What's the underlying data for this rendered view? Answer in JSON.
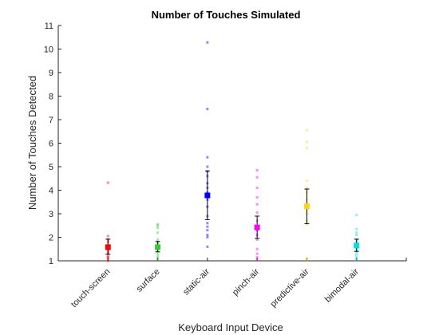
{
  "chart_data": {
    "type": "scatter",
    "title": "Number of Touches Simulated",
    "xlabel": "Keyboard Input Device",
    "ylabel": "Number of Touches Detected",
    "ylim": [
      1,
      11
    ],
    "yticks": [
      1,
      2,
      3,
      4,
      5,
      6,
      7,
      8,
      9,
      10,
      11
    ],
    "grid": false,
    "categories": [
      "touch-screen",
      "surface",
      "static-air",
      "pinch-air",
      "predictive-air",
      "bimodal-air"
    ],
    "colors": [
      "#ff0000",
      "#33cc33",
      "#0000ff",
      "#ff00ff",
      "#ffd700",
      "#00e0e0"
    ],
    "means": [
      1.58,
      1.58,
      3.78,
      2.42,
      3.32,
      1.65
    ],
    "error_low": [
      1.28,
      1.38,
      2.75,
      1.95,
      2.58,
      1.4
    ],
    "error_high": [
      1.92,
      1.82,
      4.82,
      2.9,
      4.05,
      1.92
    ],
    "points": [
      [
        1.0,
        1.1,
        1.15,
        1.2,
        1.3,
        1.4,
        1.5,
        1.6,
        1.65,
        1.8,
        1.9,
        2.05,
        4.32
      ],
      [
        1.05,
        1.1,
        1.2,
        1.3,
        1.45,
        1.6,
        1.7,
        1.8,
        1.9,
        2.2,
        2.4,
        2.5,
        2.55
      ],
      [
        1.6,
        2.0,
        2.1,
        2.3,
        2.45,
        2.6,
        2.9,
        3.3,
        3.6,
        3.9,
        4.1,
        4.3,
        4.6,
        4.8,
        5.0,
        5.4,
        7.45,
        10.28
      ],
      [
        1.05,
        1.15,
        1.3,
        1.5,
        1.9,
        2.1,
        2.3,
        2.7,
        3.05,
        3.4,
        3.7,
        4.1,
        4.55,
        4.85
      ],
      [
        1.05,
        1.1,
        2.55,
        2.7,
        3.0,
        3.4,
        3.6,
        3.9,
        4.1,
        4.4,
        5.8,
        6.05,
        6.55
      ],
      [
        1.05,
        1.1,
        1.2,
        1.3,
        1.4,
        1.5,
        1.65,
        1.8,
        1.9,
        2.1,
        2.2,
        2.35,
        2.95
      ]
    ]
  }
}
